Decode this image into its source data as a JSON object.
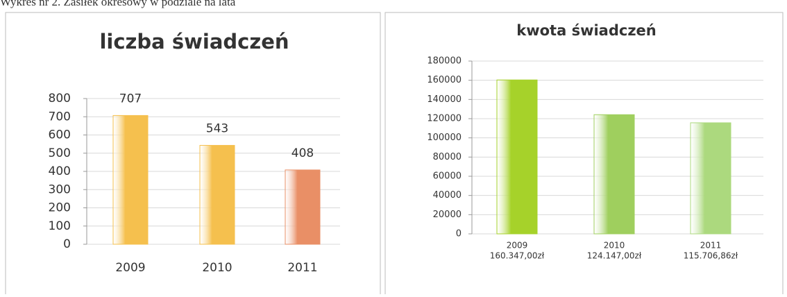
{
  "caption": "Wykres nr 2. Zasiłek okresowy w podziale na lata",
  "chart_data": [
    {
      "type": "bar",
      "title": "liczba świadczeń",
      "categories": [
        "2009",
        "2010",
        "2011"
      ],
      "values": [
        707,
        543,
        408
      ],
      "colors": [
        "#f5c04e",
        "#f5c04e",
        "#e98f66"
      ],
      "ylim": [
        0,
        800
      ],
      "yticks": [
        0,
        100,
        200,
        300,
        400,
        500,
        600,
        700,
        800
      ],
      "grid": true
    },
    {
      "type": "bar",
      "title": "kwota świadczeń",
      "categories": [
        "2009",
        "2010",
        "2011"
      ],
      "values": [
        160347,
        124147,
        115706.86
      ],
      "value_labels": [
        "160.347,00zł",
        "124.147,00zł",
        "115.706,86zł"
      ],
      "colors": [
        "#a6d22a",
        "#9fcf5e",
        "#acd97e"
      ],
      "ylim": [
        0,
        180000
      ],
      "yticks": [
        0,
        20000,
        40000,
        60000,
        80000,
        100000,
        120000,
        140000,
        160000,
        180000
      ],
      "grid": true
    }
  ]
}
